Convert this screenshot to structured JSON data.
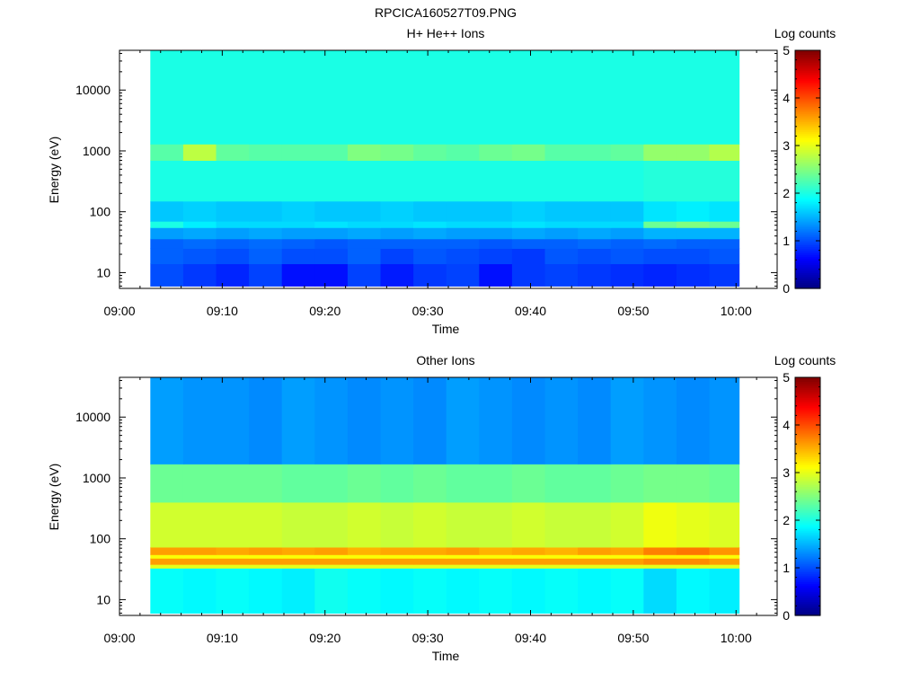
{
  "file_title": "RPCICA160527T09.PNG",
  "chart_data": [
    {
      "type": "heatmap",
      "title": "H+ He++ Ions",
      "xlabel": "Time",
      "ylabel": "Energy (eV)",
      "x_ticks": [
        "09:00",
        "09:10",
        "09:20",
        "09:30",
        "09:40",
        "09:50",
        "10:00"
      ],
      "x_tick_minutes": [
        0,
        10,
        20,
        30,
        40,
        50,
        60
      ],
      "xlim_minutes": [
        0,
        64
      ],
      "data_x_range_minutes": [
        3,
        60.3
      ],
      "y_scale": "log",
      "y_ticks": [
        10,
        100,
        1000,
        10000
      ],
      "y_tick_labels": [
        "10",
        "100",
        "1000",
        "10000"
      ],
      "ylim": [
        5.5,
        45000
      ],
      "colorbar": {
        "label": "Log counts",
        "range": [
          0,
          5
        ],
        "ticks": [
          "0",
          "1",
          "2",
          "3",
          "4",
          "5"
        ]
      },
      "time_bin_starts_minutes": [
        3,
        6.2,
        9.4,
        12.6,
        15.8,
        19,
        22.2,
        25.4,
        28.6,
        31.8,
        35,
        38.2,
        41.4,
        44.6,
        47.8,
        51,
        54.2,
        57.4
      ],
      "energy_bands_eV": [
        {
          "low": 6,
          "high": 14,
          "log_counts": [
            1.0,
            0.9,
            0.8,
            0.95,
            0.7,
            0.7,
            0.95,
            0.75,
            0.9,
            0.95,
            0.7,
            0.9,
            0.95,
            0.9,
            0.85,
            0.8,
            0.85,
            0.9
          ]
        },
        {
          "low": 14,
          "high": 25,
          "log_counts": [
            1.1,
            1.05,
            1.0,
            1.1,
            1.0,
            1.0,
            1.1,
            0.95,
            1.05,
            1.0,
            0.95,
            0.9,
            1.05,
            1.0,
            1.05,
            1.0,
            1.0,
            1.05
          ]
        },
        {
          "low": 25,
          "high": 36,
          "log_counts": [
            1.1,
            1.15,
            1.1,
            1.15,
            1.1,
            1.05,
            1.1,
            1.1,
            1.1,
            1.1,
            1.05,
            1.1,
            1.1,
            1.15,
            1.1,
            1.15,
            1.1,
            1.1
          ]
        },
        {
          "low": 36,
          "high": 55,
          "log_counts": [
            1.4,
            1.45,
            1.4,
            1.45,
            1.4,
            1.4,
            1.45,
            1.4,
            1.45,
            1.4,
            1.4,
            1.45,
            1.4,
            1.45,
            1.4,
            1.5,
            1.5,
            1.5
          ]
        },
        {
          "low": 55,
          "high": 70,
          "log_counts": [
            2.0,
            1.8,
            1.7,
            1.7,
            1.7,
            1.75,
            1.7,
            1.7,
            1.75,
            1.7,
            1.7,
            1.75,
            1.7,
            1.7,
            1.7,
            2.4,
            2.5,
            2.4
          ]
        },
        {
          "low": 70,
          "high": 150,
          "log_counts": [
            1.6,
            1.65,
            1.6,
            1.6,
            1.65,
            1.6,
            1.6,
            1.65,
            1.6,
            1.6,
            1.6,
            1.65,
            1.6,
            1.6,
            1.6,
            1.75,
            1.8,
            1.75
          ]
        },
        {
          "low": 150,
          "high": 700,
          "log_counts": [
            2.0,
            2.0,
            2.0,
            2.0,
            2.0,
            2.0,
            2.0,
            2.0,
            2.0,
            2.0,
            2.0,
            2.0,
            2.0,
            2.0,
            2.0,
            2.05,
            2.05,
            2.05
          ]
        },
        {
          "low": 700,
          "high": 1300,
          "log_counts": [
            2.3,
            2.8,
            2.35,
            2.3,
            2.3,
            2.3,
            2.5,
            2.45,
            2.35,
            2.3,
            2.4,
            2.45,
            2.3,
            2.3,
            2.35,
            2.6,
            2.6,
            2.75
          ]
        },
        {
          "low": 1300,
          "high": 45000,
          "log_counts": [
            2.0,
            2.0,
            2.0,
            2.0,
            2.0,
            2.0,
            2.0,
            2.0,
            2.0,
            2.0,
            2.0,
            2.0,
            2.0,
            2.0,
            2.0,
            2.0,
            2.0,
            2.0
          ]
        }
      ]
    },
    {
      "type": "heatmap",
      "title": "Other Ions",
      "xlabel": "Time",
      "ylabel": "Energy (eV)",
      "x_ticks": [
        "09:00",
        "09:10",
        "09:20",
        "09:30",
        "09:40",
        "09:50",
        "10:00"
      ],
      "x_tick_minutes": [
        0,
        10,
        20,
        30,
        40,
        50,
        60
      ],
      "xlim_minutes": [
        0,
        64
      ],
      "data_x_range_minutes": [
        3,
        60.3
      ],
      "y_scale": "log",
      "y_ticks": [
        10,
        100,
        1000,
        10000
      ],
      "y_tick_labels": [
        "10",
        "100",
        "1000",
        "10000"
      ],
      "ylim": [
        5.5,
        45000
      ],
      "colorbar": {
        "label": "Log counts",
        "range": [
          0,
          5
        ],
        "ticks": [
          "0",
          "1",
          "2",
          "3",
          "4",
          "5"
        ]
      },
      "time_bin_starts_minutes": [
        3,
        6.2,
        9.4,
        12.6,
        15.8,
        19,
        22.2,
        25.4,
        28.6,
        31.8,
        35,
        38.2,
        41.4,
        44.6,
        47.8,
        51,
        54.2,
        57.4
      ],
      "energy_bands_eV": [
        {
          "low": 6,
          "high": 33,
          "log_counts": [
            1.9,
            1.85,
            1.9,
            1.85,
            1.8,
            1.95,
            1.9,
            1.85,
            1.9,
            1.85,
            1.9,
            1.85,
            1.9,
            1.85,
            1.9,
            1.7,
            1.85,
            1.8
          ]
        },
        {
          "low": 33,
          "high": 38,
          "log_counts": [
            3.0,
            3.0,
            3.0,
            3.0,
            3.0,
            3.0,
            3.0,
            3.0,
            3.0,
            3.0,
            3.0,
            3.0,
            3.0,
            3.0,
            3.0,
            3.0,
            3.0,
            3.0
          ]
        },
        {
          "low": 38,
          "high": 48,
          "log_counts": [
            3.6,
            3.6,
            3.6,
            3.6,
            3.6,
            3.6,
            3.6,
            3.6,
            3.6,
            3.6,
            3.6,
            3.6,
            3.6,
            3.6,
            3.6,
            3.7,
            3.7,
            3.6
          ]
        },
        {
          "low": 48,
          "high": 55,
          "log_counts": [
            3.1,
            3.1,
            3.1,
            3.1,
            3.1,
            3.1,
            3.1,
            3.1,
            3.1,
            3.1,
            3.1,
            3.1,
            3.1,
            3.1,
            3.1,
            3.2,
            3.2,
            3.1
          ]
        },
        {
          "low": 55,
          "high": 73,
          "log_counts": [
            3.6,
            3.6,
            3.55,
            3.6,
            3.55,
            3.6,
            3.5,
            3.55,
            3.55,
            3.6,
            3.5,
            3.55,
            3.5,
            3.6,
            3.55,
            3.75,
            3.8,
            3.65
          ]
        },
        {
          "low": 73,
          "high": 400,
          "log_counts": [
            2.9,
            2.9,
            2.9,
            2.9,
            2.85,
            2.85,
            2.9,
            2.85,
            2.9,
            2.85,
            2.85,
            2.9,
            2.85,
            2.85,
            2.9,
            3.05,
            3.0,
            2.95
          ]
        },
        {
          "low": 400,
          "high": 1700,
          "log_counts": [
            2.4,
            2.4,
            2.4,
            2.4,
            2.35,
            2.35,
            2.4,
            2.35,
            2.4,
            2.35,
            2.35,
            2.4,
            2.35,
            2.35,
            2.4,
            2.45,
            2.45,
            2.4
          ]
        },
        {
          "low": 1700,
          "high": 45000,
          "log_counts": [
            1.4,
            1.35,
            1.35,
            1.3,
            1.4,
            1.35,
            1.3,
            1.35,
            1.3,
            1.4,
            1.35,
            1.3,
            1.35,
            1.3,
            1.4,
            1.35,
            1.3,
            1.35
          ]
        }
      ]
    }
  ]
}
